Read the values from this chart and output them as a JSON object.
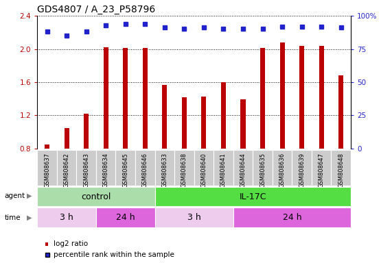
{
  "title": "GDS4807 / A_23_P58796",
  "samples": [
    "GSM808637",
    "GSM808642",
    "GSM808643",
    "GSM808634",
    "GSM808645",
    "GSM808646",
    "GSM808633",
    "GSM808638",
    "GSM808640",
    "GSM808641",
    "GSM808644",
    "GSM808635",
    "GSM808636",
    "GSM808639",
    "GSM808647",
    "GSM808648"
  ],
  "log2_ratio": [
    0.85,
    1.05,
    1.22,
    2.02,
    2.01,
    2.01,
    1.57,
    1.42,
    1.43,
    1.6,
    1.39,
    2.01,
    2.08,
    2.04,
    2.04,
    1.68
  ],
  "percentile": [
    88,
    85,
    88,
    93,
    94,
    94,
    91,
    90,
    91,
    90,
    90,
    90,
    92,
    92,
    92,
    91
  ],
  "bar_color": "#bb0000",
  "dot_color": "#2222cc",
  "ylim_left": [
    0.8,
    2.4
  ],
  "ylim_right": [
    0,
    100
  ],
  "yticks_left": [
    0.8,
    1.2,
    1.6,
    2.0,
    2.4
  ],
  "yticks_right": [
    0,
    25,
    50,
    75,
    100
  ],
  "agent_groups": [
    {
      "label": "control",
      "start": 0,
      "end": 6,
      "color": "#aaddaa"
    },
    {
      "label": "IL-17C",
      "start": 6,
      "end": 16,
      "color": "#55dd44"
    }
  ],
  "time_groups": [
    {
      "label": "3 h",
      "start": 0,
      "end": 3,
      "color": "#eeccee"
    },
    {
      "label": "24 h",
      "start": 3,
      "end": 6,
      "color": "#dd66dd"
    },
    {
      "label": "3 h",
      "start": 6,
      "end": 10,
      "color": "#eeccee"
    },
    {
      "label": "24 h",
      "start": 10,
      "end": 16,
      "color": "#dd66dd"
    }
  ],
  "legend_bar_label": "log2 ratio",
  "legend_dot_label": "percentile rank within the sample",
  "tick_label_area_color": "#cccccc",
  "bar_width": 0.25
}
